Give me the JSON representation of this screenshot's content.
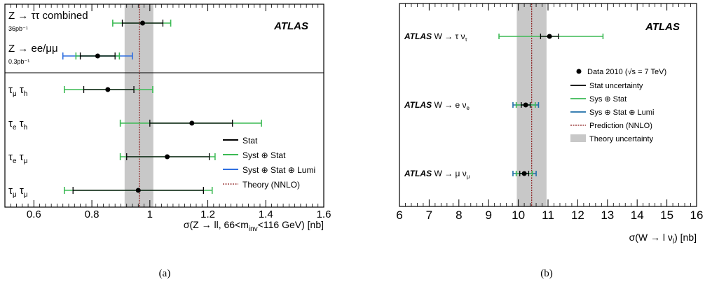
{
  "colors": {
    "stat": "#000000",
    "syst": "#3cba54",
    "lumi": "#2f6fe0",
    "lumi_b": "#1f6fa8",
    "theory_line": "#8b1a1a",
    "theory_band": "#c8c8c8",
    "point": "#000000"
  },
  "chart_data": [
    {
      "type": "scatter",
      "caption": "(a)",
      "atlas_label": "ATLAS",
      "xlabel_parts": {
        "pre": "σ(Z → ll, 66<m",
        "sub": "inv",
        "post": "<116 GeV) [nb]"
      },
      "xlim": [
        0.5,
        1.6
      ],
      "x_ticks": [
        0.6,
        0.8,
        1.0,
        1.2,
        1.4,
        1.6
      ],
      "x_tick_labels": [
        "0.6",
        "0.8",
        "1",
        "1.2",
        "1.4",
        "1.6"
      ],
      "theory": {
        "value": 0.964,
        "band": [
          0.913,
          1.012
        ]
      },
      "legend": {
        "stat": "Stat",
        "syst": "Syst ⊕ Stat",
        "lumi": "Syst ⊕ Stat ⊕ Lumi",
        "theory": "Theory (NNLO)"
      },
      "points": [
        {
          "label_main": "Z → ττ combined",
          "label_sub": "36pb⁻¹",
          "value": 0.975,
          "stat": [
            0.905,
            1.045
          ],
          "syst": [
            0.872,
            1.072
          ]
        },
        {
          "label_main": "Z → ee/μμ",
          "label_sub": "0.3pb⁻¹",
          "value": 0.82,
          "stat": [
            0.76,
            0.88
          ],
          "syst": [
            0.745,
            0.895
          ],
          "lumi": [
            0.7,
            0.94
          ]
        },
        {
          "label": "τμ τh",
          "parts": [
            "τ",
            "μ",
            " τ",
            "h"
          ],
          "value": 0.855,
          "stat": [
            0.772,
            0.945
          ],
          "syst": [
            0.705,
            1.01
          ]
        },
        {
          "label": "τe τh",
          "parts": [
            "τ",
            "e",
            " τ",
            "h"
          ],
          "value": 1.145,
          "stat": [
            1.0,
            1.285
          ],
          "syst": [
            0.898,
            1.385
          ]
        },
        {
          "label": "τe τμ",
          "parts": [
            "τ",
            "e",
            " τ",
            "μ"
          ],
          "value": 1.06,
          "stat": [
            0.92,
            1.205
          ],
          "syst": [
            0.898,
            1.225
          ]
        },
        {
          "label": "τμ τμ",
          "parts": [
            "τ",
            "μ",
            " τ",
            "μ"
          ],
          "value": 0.96,
          "stat": [
            0.735,
            1.185
          ],
          "syst": [
            0.705,
            1.215
          ]
        }
      ]
    },
    {
      "type": "scatter",
      "caption": "(b)",
      "atlas_label": "ATLAS",
      "xlabel_parts": {
        "pre": "σ(W → l ν",
        "sub": "l",
        "post": ") [nb]"
      },
      "xlim": [
        6,
        16
      ],
      "x_ticks": [
        6,
        7,
        8,
        9,
        10,
        11,
        12,
        13,
        14,
        15,
        16
      ],
      "x_tick_labels": [
        "6",
        "7",
        "8",
        "9",
        "10",
        "11",
        "12",
        "13",
        "14",
        "15",
        "16"
      ],
      "theory": {
        "value": 10.45,
        "band": [
          9.95,
          10.95
        ]
      },
      "legend": {
        "data": "Data 2010 (√s = 7 TeV)",
        "stat": "Stat uncertainty",
        "syst": "Sys ⊕ Stat",
        "lumi": "Sys ⊕ Stat ⊕ Lumi",
        "theory": "Prediction (NNLO)",
        "band": "Theory uncertainty"
      },
      "points": [
        {
          "prefix": "ATLAS",
          "label": "W → τ ντ",
          "base": "W → τ ν",
          "sub": "τ",
          "value": 11.05,
          "stat": [
            10.75,
            11.35
          ],
          "syst": [
            9.35,
            12.85
          ]
        },
        {
          "prefix": "ATLAS",
          "label": "W → e νe",
          "base": "W → e ν",
          "sub": "e",
          "value": 10.25,
          "stat": [
            10.1,
            10.4
          ],
          "syst": [
            9.93,
            10.57
          ],
          "lumi": [
            9.82,
            10.68
          ]
        },
        {
          "prefix": "ATLAS",
          "label": "W → μ νμ",
          "base": "W → μ ν",
          "sub": "μ",
          "value": 10.2,
          "stat": [
            10.05,
            10.35
          ],
          "syst": [
            9.93,
            10.47
          ],
          "lumi": [
            9.82,
            10.6
          ]
        }
      ]
    }
  ]
}
